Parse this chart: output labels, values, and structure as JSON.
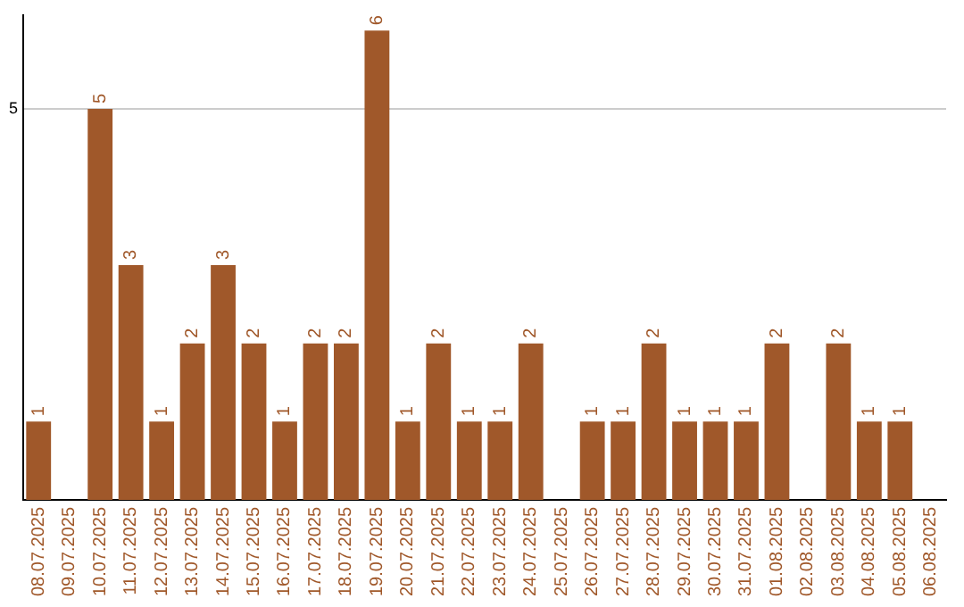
{
  "chart_data": {
    "type": "bar",
    "categories": [
      "08.07.2025",
      "09.07.2025",
      "10.07.2025",
      "11.07.2025",
      "12.07.2025",
      "13.07.2025",
      "14.07.2025",
      "15.07.2025",
      "16.07.2025",
      "17.07.2025",
      "18.07.2025",
      "19.07.2025",
      "20.07.2025",
      "21.07.2025",
      "22.07.2025",
      "23.07.2025",
      "24.07.2025",
      "25.07.2025",
      "26.07.2025",
      "27.07.2025",
      "28.07.2025",
      "29.07.2025",
      "30.07.2025",
      "31.07.2025",
      "01.08.2025",
      "02.08.2025",
      "03.08.2025",
      "04.08.2025",
      "05.08.2025",
      "06.08.2025"
    ],
    "values": [
      1,
      null,
      5,
      3,
      1,
      2,
      3,
      2,
      1,
      2,
      2,
      6,
      1,
      2,
      1,
      1,
      2,
      null,
      1,
      1,
      2,
      1,
      1,
      1,
      2,
      null,
      2,
      1,
      1,
      null
    ],
    "color": "#a0582a",
    "ylim": [
      0,
      6.2
    ],
    "yticks": [
      5
    ],
    "grid": "y",
    "data_labels": true
  }
}
